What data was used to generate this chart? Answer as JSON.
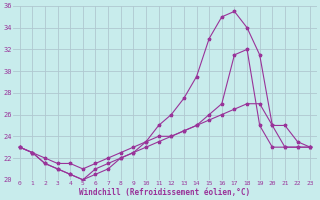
{
  "xlabel": "Windchill (Refroidissement éolien,°C)",
  "background_color": "#c8ecec",
  "grid_color": "#b0c8d0",
  "line_color": "#993399",
  "xlim": [
    -0.5,
    23.5
  ],
  "ylim": [
    20,
    36
  ],
  "xticks": [
    0,
    1,
    2,
    3,
    4,
    5,
    6,
    7,
    8,
    9,
    10,
    11,
    12,
    13,
    14,
    15,
    16,
    17,
    18,
    19,
    20,
    21,
    22,
    23
  ],
  "yticks": [
    20,
    22,
    24,
    26,
    28,
    30,
    32,
    34,
    36
  ],
  "line1_x": [
    0,
    1,
    2,
    3,
    4,
    5,
    6,
    7,
    8,
    9,
    10,
    11,
    12,
    13,
    14,
    15,
    16,
    17,
    18,
    19,
    20,
    21,
    22,
    23
  ],
  "line1_y": [
    23,
    22.5,
    21.5,
    21,
    20.5,
    20,
    20.5,
    21,
    22,
    22.5,
    23.5,
    25,
    26,
    27.5,
    29.5,
    33,
    35,
    35.5,
    34,
    31.5,
    25,
    25,
    23.5,
    23
  ],
  "line2_x": [
    0,
    1,
    2,
    3,
    4,
    5,
    6,
    7,
    8,
    9,
    10,
    11,
    12,
    13,
    14,
    15,
    16,
    17,
    18,
    19,
    20,
    21,
    22,
    23
  ],
  "line2_y": [
    23,
    22.5,
    21.5,
    21,
    20.5,
    20,
    21,
    21.5,
    22,
    22.5,
    23,
    23.5,
    24,
    24.5,
    25,
    26,
    27,
    31.5,
    32,
    25,
    23,
    23,
    23,
    23
  ],
  "line3_x": [
    0,
    1,
    2,
    3,
    4,
    5,
    6,
    7,
    8,
    9,
    10,
    11,
    12,
    13,
    14,
    15,
    16,
    17,
    18,
    19,
    20,
    21,
    22,
    23
  ],
  "line3_y": [
    23,
    22.5,
    22,
    21.5,
    21.5,
    21,
    21.5,
    22,
    22.5,
    23,
    23.5,
    24,
    24,
    24.5,
    25,
    25.5,
    26,
    26.5,
    27,
    27,
    25,
    23,
    23,
    23
  ]
}
